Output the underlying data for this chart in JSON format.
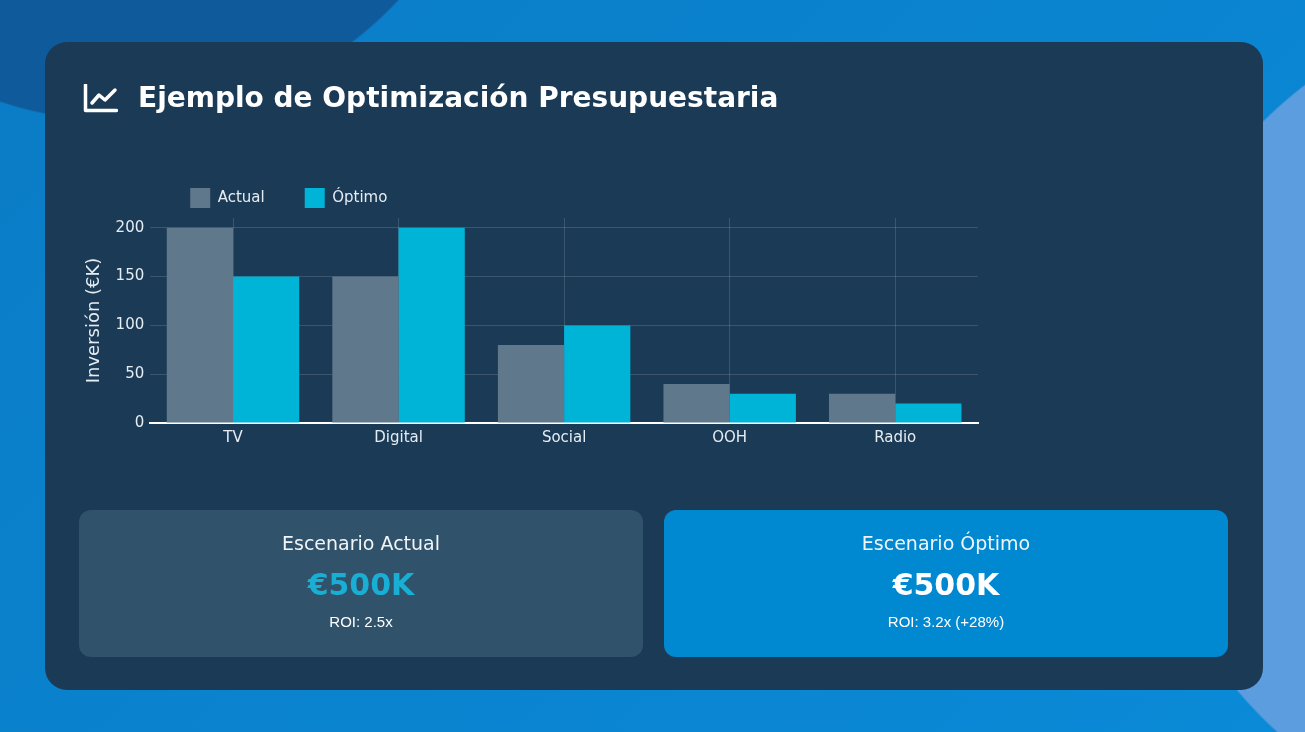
{
  "chart_data": [
    {
      "type": "bar",
      "title": "Ejemplo de Optimización Presupuestaria",
      "categories": [
        "TV",
        "Digital",
        "Social",
        "OOH",
        "Radio"
      ],
      "series": [
        {
          "name": "Actual",
          "color": "#5f788c",
          "values": [
            200,
            150,
            80,
            40,
            30
          ]
        },
        {
          "name": "Óptimo",
          "color": "#00b4d8",
          "values": [
            150,
            200,
            100,
            30,
            20
          ]
        }
      ],
      "ylabel": "Inversión (€K)",
      "ylim": [
        0,
        210
      ],
      "yticks": [
        0,
        50,
        100,
        150,
        200
      ],
      "grid": true,
      "legend": "top left"
    },
    {
      "type": "other",
      "title": "Escenario Actual",
      "annotations": [
        "€500K",
        "ROI: 2.5x"
      ]
    },
    {
      "type": "other",
      "title": "Escenario Óptimo",
      "annotations": [
        "€500K",
        "ROI: 3.2x (+28%)"
      ]
    }
  ]
}
